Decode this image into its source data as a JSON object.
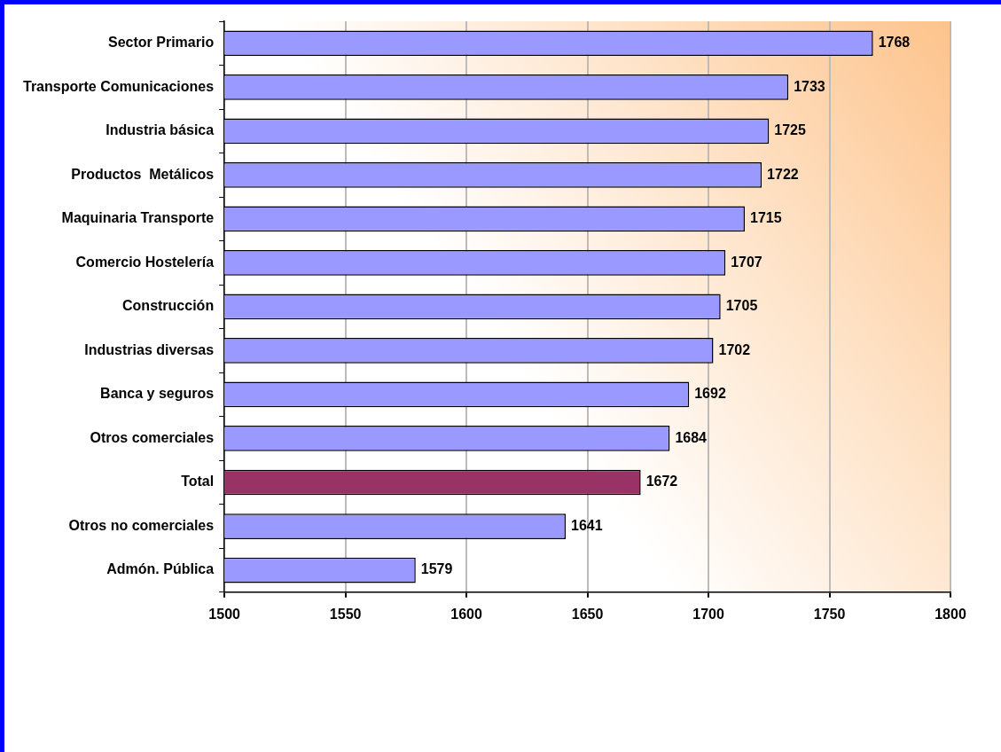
{
  "chart_data": {
    "type": "bar",
    "orientation": "horizontal",
    "categories": [
      "Sector Primario",
      "Transporte Comunicaciones",
      "Industria básica",
      "Productos  Metálicos",
      "Maquinaria Transporte",
      "Comercio Hostelería",
      "Construcción",
      "Industrias diversas",
      "Banca y seguros",
      "Otros comerciales",
      "Total",
      "Otros no comerciales",
      "Admón. Pública"
    ],
    "values": [
      1768,
      1733,
      1725,
      1722,
      1715,
      1707,
      1705,
      1702,
      1692,
      1684,
      1672,
      1641,
      1579
    ],
    "colors": [
      "#9999ff",
      "#9999ff",
      "#9999ff",
      "#9999ff",
      "#9999ff",
      "#9999ff",
      "#9999ff",
      "#9999ff",
      "#9999ff",
      "#9999ff",
      "#993366",
      "#9999ff",
      "#9999ff"
    ],
    "xlim": [
      1500,
      1800
    ],
    "xticks": [
      1500,
      1550,
      1600,
      1650,
      1700,
      1750,
      1800
    ],
    "grid": "x",
    "data_labels": true
  }
}
